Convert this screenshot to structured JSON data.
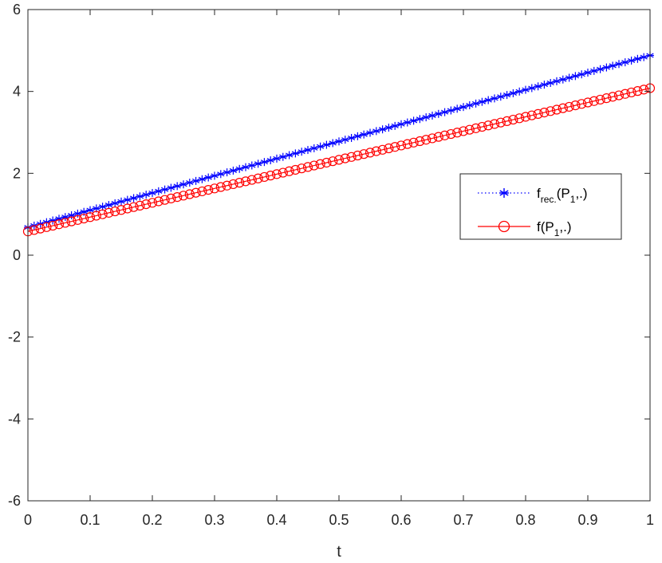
{
  "chart_data": {
    "type": "line",
    "xlabel": "t",
    "ylabel": "",
    "xlim": [
      0,
      1
    ],
    "ylim": [
      -6,
      6
    ],
    "x_ticks": [
      0,
      0.1,
      0.2,
      0.3,
      0.4,
      0.5,
      0.6,
      0.7,
      0.8,
      0.9,
      1
    ],
    "x_tick_labels": [
      "0",
      "0.1",
      "0.2",
      "0.3",
      "0.4",
      "0.5",
      "0.6",
      "0.7",
      "0.8",
      "0.9",
      "1"
    ],
    "y_ticks": [
      -6,
      -4,
      -2,
      0,
      2,
      4,
      6
    ],
    "y_tick_labels": [
      "-6",
      "-4",
      "-2",
      "0",
      "2",
      "4",
      "6"
    ],
    "grid": false,
    "legend_position": "right",
    "num_points": 101,
    "series": [
      {
        "name": "f_rec.(P_1,.)",
        "legend_main": "f",
        "legend_sub": "rec.",
        "legend_rest": "(P",
        "legend_sub2": "1",
        "legend_end": ",.)",
        "color": "#0000ff",
        "line_style": "dotted",
        "marker": "asterisk",
        "x_start": 0,
        "x_end": 1,
        "y_start": 0.68,
        "y_end": 4.88,
        "shape": "linear"
      },
      {
        "name": "f(P_1,.)",
        "legend_main": "f(P",
        "legend_sub": "1",
        "legend_rest": ",.)",
        "color": "#ff0000",
        "line_style": "solid",
        "marker": "circle",
        "x_start": 0,
        "x_end": 1,
        "y_start": 0.58,
        "y_end": 4.08,
        "shape": "linear"
      }
    ]
  }
}
